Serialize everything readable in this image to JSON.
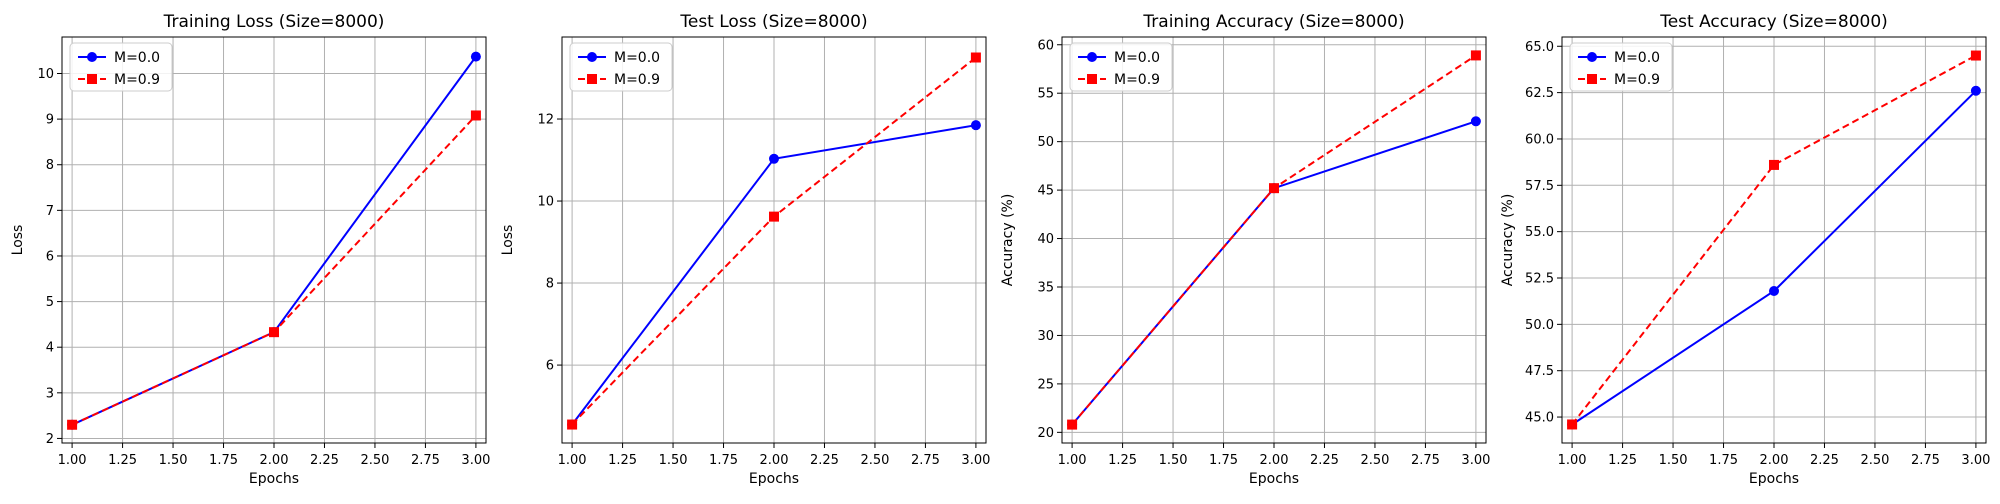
{
  "figure": {
    "background": "#ffffff"
  },
  "chart_data": [
    {
      "type": "line",
      "title": "Training Loss (Size=8000)",
      "xlabel": "Epochs",
      "ylabel": "Loss",
      "x": [
        1,
        2,
        3
      ],
      "xlim": [
        0.95,
        3.05
      ],
      "ylim": [
        1.9,
        10.8
      ],
      "xticks": [
        1.0,
        1.25,
        1.5,
        1.75,
        2.0,
        2.25,
        2.5,
        2.75,
        3.0
      ],
      "xtick_labels": [
        "1.00",
        "1.25",
        "1.50",
        "1.75",
        "2.00",
        "2.25",
        "2.50",
        "2.75",
        "3.00"
      ],
      "yticks": [
        2,
        3,
        4,
        5,
        6,
        7,
        8,
        9,
        10
      ],
      "ytick_labels": [
        "2",
        "3",
        "4",
        "5",
        "6",
        "7",
        "8",
        "9",
        "10"
      ],
      "grid": true,
      "legend_position": "upper-left",
      "series": [
        {
          "name": "M=0.0",
          "values": [
            2.3,
            4.33,
            10.37
          ],
          "color": "#0000ff",
          "marker": "circle",
          "linestyle": "solid"
        },
        {
          "name": "M=0.9",
          "values": [
            2.3,
            4.33,
            9.08
          ],
          "color": "#ff0000",
          "marker": "square",
          "linestyle": "dashed"
        }
      ]
    },
    {
      "type": "line",
      "title": "Test Loss (Size=8000)",
      "xlabel": "Epochs",
      "ylabel": "Loss",
      "x": [
        1,
        2,
        3
      ],
      "xlim": [
        0.95,
        3.05
      ],
      "ylim": [
        4.1,
        14.0
      ],
      "xticks": [
        1.0,
        1.25,
        1.5,
        1.75,
        2.0,
        2.25,
        2.5,
        2.75,
        3.0
      ],
      "xtick_labels": [
        "1.00",
        "1.25",
        "1.50",
        "1.75",
        "2.00",
        "2.25",
        "2.50",
        "2.75",
        "3.00"
      ],
      "yticks": [
        6,
        8,
        10,
        12
      ],
      "ytick_labels": [
        "6",
        "8",
        "10",
        "12"
      ],
      "grid": true,
      "legend_position": "upper-left",
      "series": [
        {
          "name": "M=0.0",
          "values": [
            4.55,
            11.03,
            11.85
          ],
          "color": "#0000ff",
          "marker": "circle",
          "linestyle": "solid"
        },
        {
          "name": "M=0.9",
          "values": [
            4.55,
            9.62,
            13.5
          ],
          "color": "#ff0000",
          "marker": "square",
          "linestyle": "dashed"
        }
      ]
    },
    {
      "type": "line",
      "title": "Training Accuracy (Size=8000)",
      "xlabel": "Epochs",
      "ylabel": "Accuracy (%)",
      "x": [
        1,
        2,
        3
      ],
      "xlim": [
        0.95,
        3.05
      ],
      "ylim": [
        18.9,
        60.8
      ],
      "xticks": [
        1.0,
        1.25,
        1.5,
        1.75,
        2.0,
        2.25,
        2.5,
        2.75,
        3.0
      ],
      "xtick_labels": [
        "1.00",
        "1.25",
        "1.50",
        "1.75",
        "2.00",
        "2.25",
        "2.50",
        "2.75",
        "3.00"
      ],
      "yticks": [
        20,
        25,
        30,
        35,
        40,
        45,
        50,
        55,
        60
      ],
      "ytick_labels": [
        "20",
        "25",
        "30",
        "35",
        "40",
        "45",
        "50",
        "55",
        "60"
      ],
      "grid": true,
      "legend_position": "upper-left",
      "series": [
        {
          "name": "M=0.0",
          "values": [
            20.8,
            45.2,
            52.1
          ],
          "color": "#0000ff",
          "marker": "circle",
          "linestyle": "solid"
        },
        {
          "name": "M=0.9",
          "values": [
            20.8,
            45.2,
            58.9
          ],
          "color": "#ff0000",
          "marker": "square",
          "linestyle": "dashed"
        }
      ]
    },
    {
      "type": "line",
      "title": "Test Accuracy (Size=8000)",
      "xlabel": "Epochs",
      "ylabel": "Accuracy (%)",
      "x": [
        1,
        2,
        3
      ],
      "xlim": [
        0.95,
        3.05
      ],
      "ylim": [
        43.6,
        65.5
      ],
      "xticks": [
        1.0,
        1.25,
        1.5,
        1.75,
        2.0,
        2.25,
        2.5,
        2.75,
        3.0
      ],
      "xtick_labels": [
        "1.00",
        "1.25",
        "1.50",
        "1.75",
        "2.00",
        "2.25",
        "2.50",
        "2.75",
        "3.00"
      ],
      "yticks": [
        45.0,
        47.5,
        50.0,
        52.5,
        55.0,
        57.5,
        60.0,
        62.5,
        65.0
      ],
      "ytick_labels": [
        "45.0",
        "47.5",
        "50.0",
        "52.5",
        "55.0",
        "57.5",
        "60.0",
        "62.5",
        "65.0"
      ],
      "grid": true,
      "legend_position": "upper-left",
      "series": [
        {
          "name": "M=0.0",
          "values": [
            44.6,
            51.8,
            62.6
          ],
          "color": "#0000ff",
          "marker": "circle",
          "linestyle": "solid"
        },
        {
          "name": "M=0.9",
          "values": [
            44.6,
            58.6,
            64.5
          ],
          "color": "#ff0000",
          "marker": "square",
          "linestyle": "dashed"
        }
      ]
    }
  ]
}
